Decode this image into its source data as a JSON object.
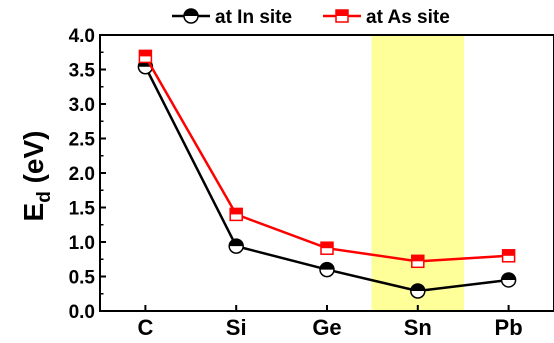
{
  "chart_data": {
    "type": "line",
    "title": "",
    "xlabel": "",
    "ylabel_main": "E",
    "ylabel_sub": "d",
    "ylabel_rest": " (eV)",
    "categories": [
      "C",
      "Si",
      "Ge",
      "Sn",
      "Pb"
    ],
    "ylim": [
      0.0,
      4.0
    ],
    "yticks": [
      "0.0",
      "0.5",
      "1.0",
      "1.5",
      "2.0",
      "2.5",
      "3.0",
      "3.5",
      "4.0"
    ],
    "grid": false,
    "legend_position": "top",
    "highlight": {
      "category": "Sn",
      "color": "#ffff99"
    },
    "series": [
      {
        "name": "at In site",
        "color": "#000000",
        "marker": "circle-half",
        "values": [
          3.54,
          0.94,
          0.6,
          0.29,
          0.45
        ]
      },
      {
        "name": "at As site",
        "color": "#ff0000",
        "marker": "square-half",
        "values": [
          3.69,
          1.4,
          0.91,
          0.72,
          0.8
        ]
      }
    ]
  }
}
